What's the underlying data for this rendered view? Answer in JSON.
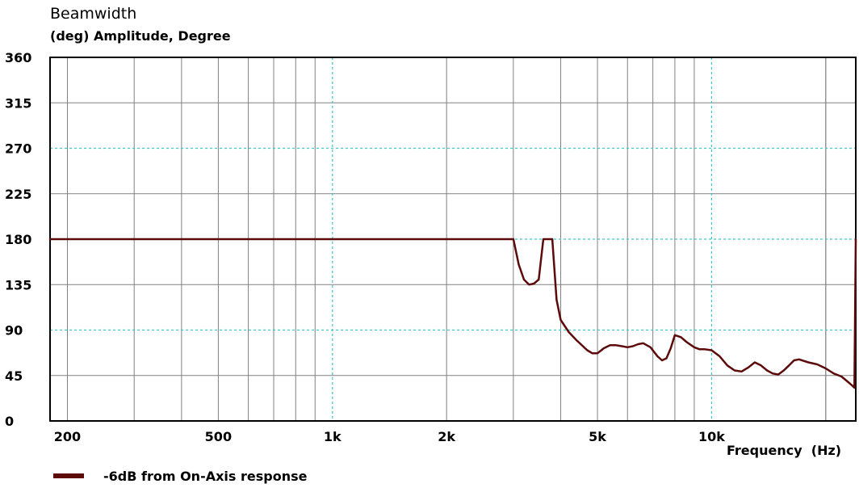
{
  "chart_data": {
    "type": "line",
    "title": "Beamwidth",
    "ylabel": "(deg)  Amplitude, Degree",
    "xlabel": "Frequency  (Hz)",
    "x_scale": "log",
    "xlim": [
      180,
      24000
    ],
    "ylim": [
      0,
      360
    ],
    "y_ticks": [
      0,
      45,
      90,
      135,
      180,
      225,
      270,
      315,
      360
    ],
    "y_tick_labels": [
      "0",
      "45",
      "90",
      "135",
      "180",
      "225",
      "270",
      "315",
      "360"
    ],
    "x_ticks": [
      200,
      500,
      1000,
      2000,
      5000,
      10000
    ],
    "x_tick_labels": [
      "200",
      "500",
      "1k",
      "2k",
      "5k",
      "10k"
    ],
    "grid": true,
    "legend_position": "bottom-left",
    "colors": {
      "series": "#5c0a0a",
      "grid_major": "#3cc8c8",
      "grid_minor": "#808080",
      "axes": "#000000"
    },
    "series": [
      {
        "name": "-6dB from On-Axis response",
        "x": [
          180,
          3000,
          3100,
          3200,
          3300,
          3400,
          3500,
          3600,
          3700,
          3800,
          3900,
          4000,
          4200,
          4400,
          4700,
          4850,
          5000,
          5200,
          5400,
          5600,
          5800,
          6000,
          6200,
          6400,
          6600,
          6900,
          7200,
          7400,
          7600,
          7800,
          8000,
          8300,
          8600,
          9000,
          9300,
          9600,
          10000,
          10500,
          11000,
          11500,
          12000,
          12500,
          13000,
          13500,
          14000,
          14500,
          15000,
          15500,
          16000,
          16500,
          17000,
          18000,
          19000,
          20000,
          21000,
          22000,
          23000,
          23500,
          23800,
          24000
        ],
        "values": [
          180,
          180,
          155,
          140,
          135,
          136,
          140,
          180,
          180,
          180,
          120,
          100,
          88,
          80,
          70,
          67,
          67,
          72,
          75,
          75,
          74,
          73,
          74,
          76,
          77,
          73,
          64,
          60,
          62,
          72,
          85,
          83,
          78,
          73,
          71,
          71,
          70,
          64,
          55,
          50,
          49,
          53,
          58,
          55,
          50,
          47,
          46,
          50,
          55,
          60,
          61,
          58,
          56,
          52,
          47,
          44,
          38,
          35,
          33,
          180
        ]
      }
    ]
  }
}
